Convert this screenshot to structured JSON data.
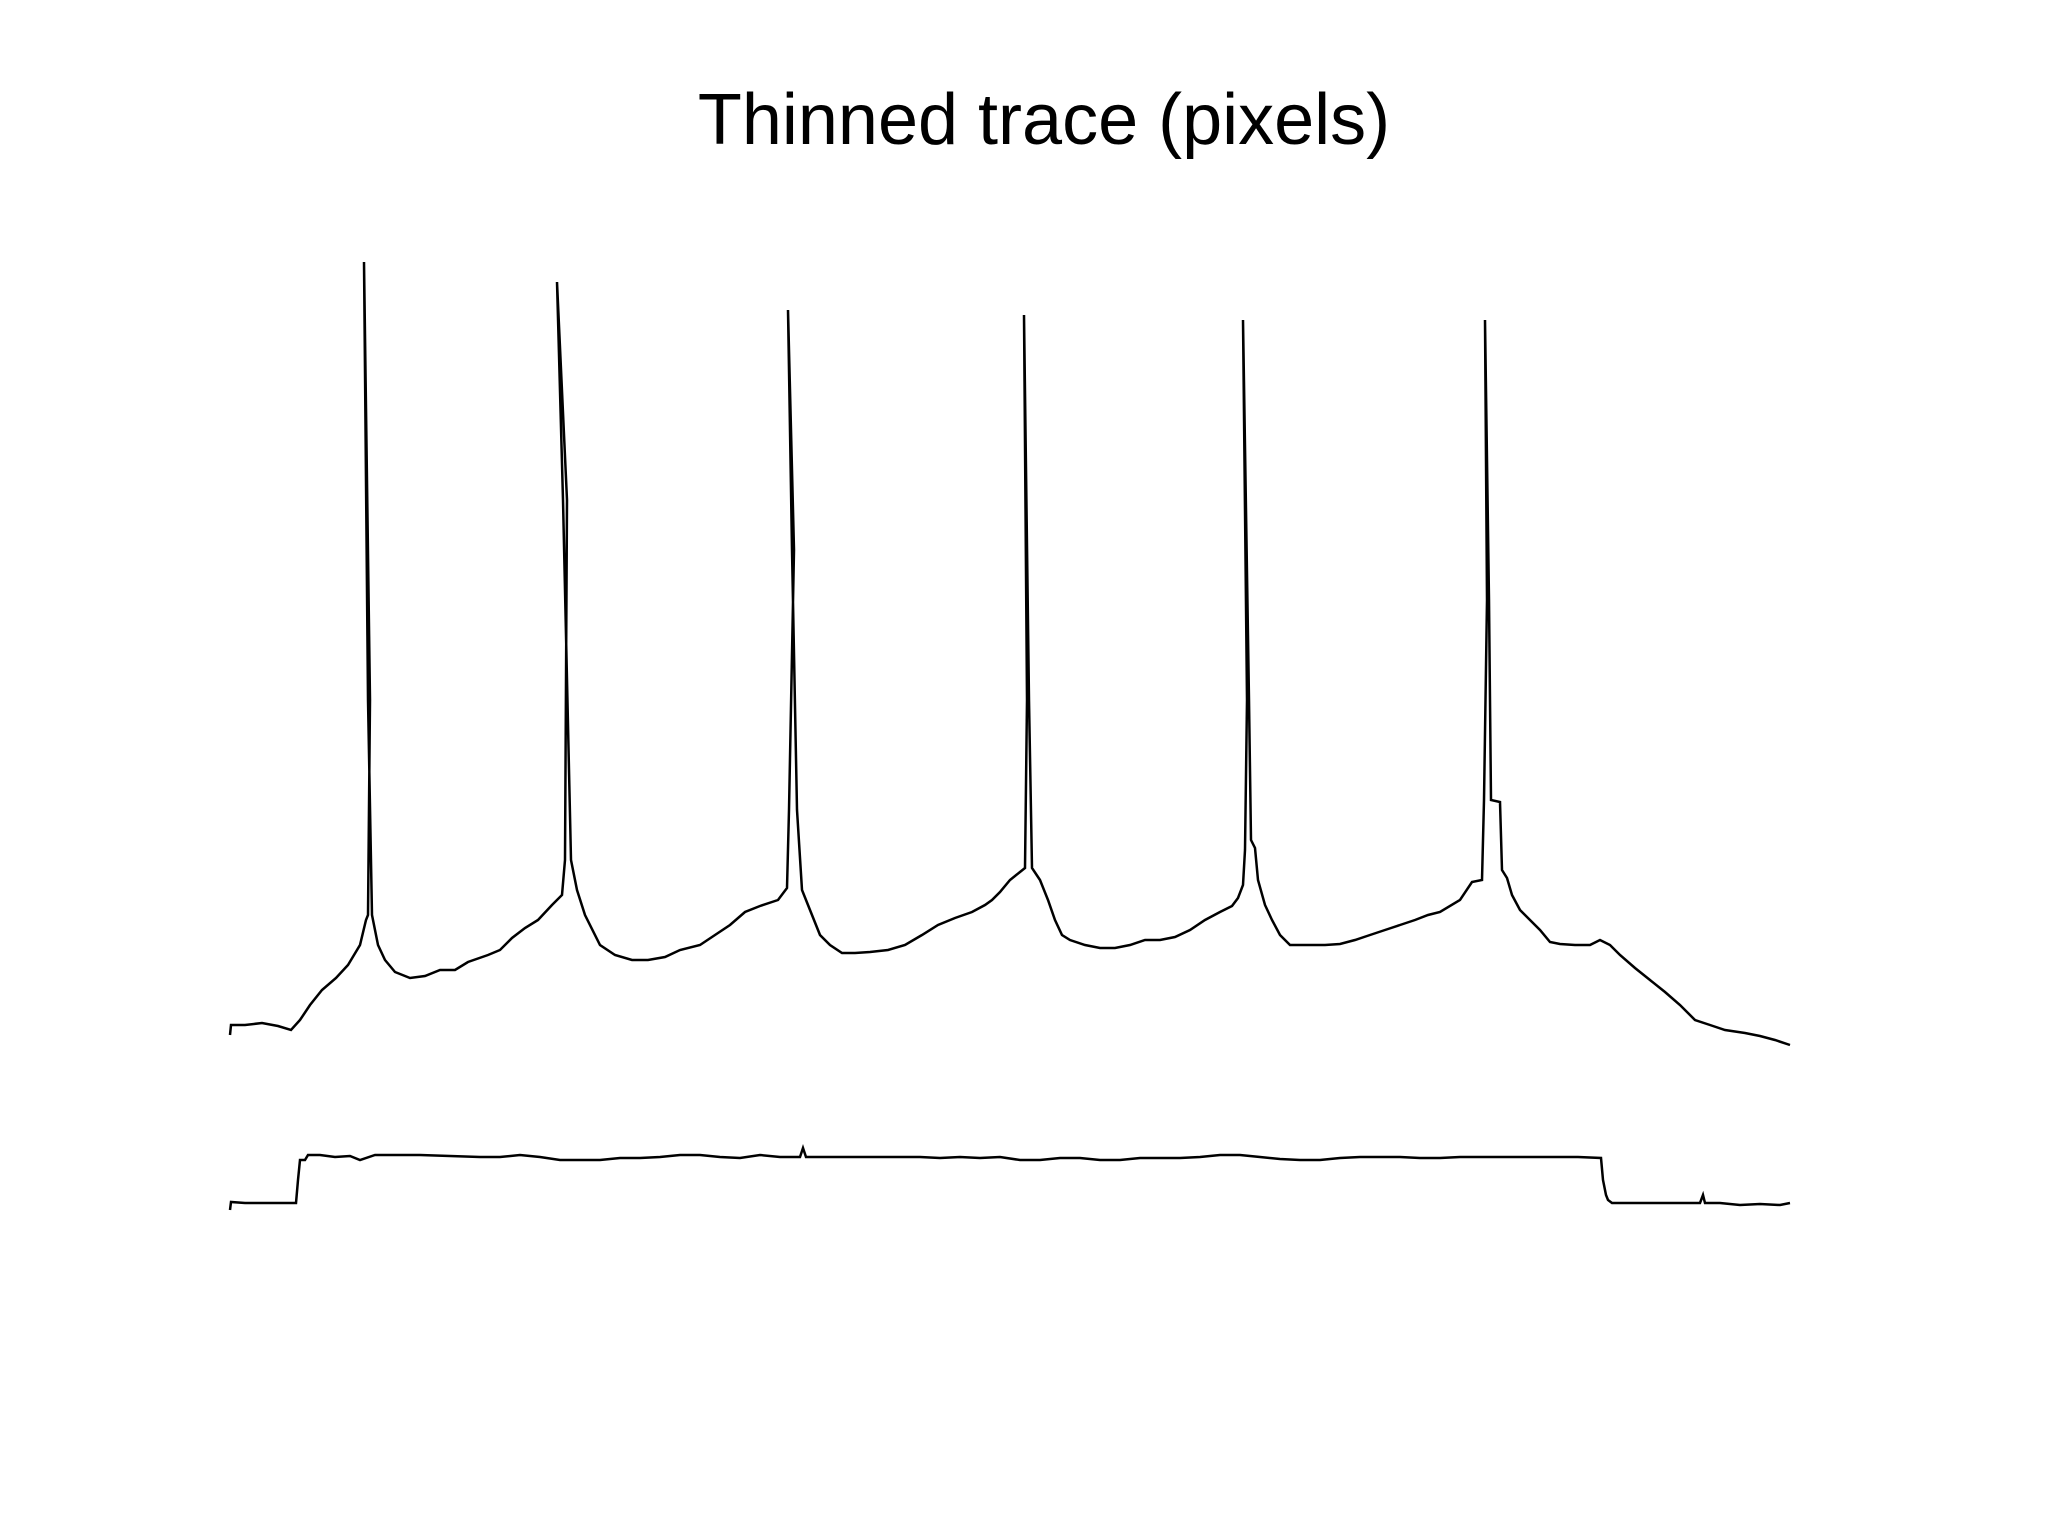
{
  "title": "Thinned trace (pixels)",
  "chart_data": {
    "type": "line",
    "title": "Thinned trace (pixels)",
    "xlabel": "",
    "ylabel": "",
    "grid": false,
    "legend": "none",
    "colors": {
      "trace": "#000000",
      "background": "#ffffff"
    },
    "x_range": [
      230,
      1800
    ],
    "y_range": [
      240,
      1220
    ],
    "series": [
      {
        "name": "",
        "points": [
          [
            230,
            1035
          ],
          [
            231,
            1025
          ],
          [
            245,
            1025
          ],
          [
            262,
            1023
          ],
          [
            278,
            1026
          ],
          [
            291,
            1030
          ],
          [
            300,
            1020
          ],
          [
            310,
            1005
          ],
          [
            322,
            990
          ],
          [
            336,
            978
          ],
          [
            348,
            965
          ],
          [
            360,
            945
          ],
          [
            366,
            920
          ],
          [
            368,
            915
          ],
          [
            370,
            700
          ],
          [
            364,
            262
          ],
          [
            368,
            700
          ],
          [
            372,
            915
          ],
          [
            378,
            945
          ],
          [
            385,
            960
          ],
          [
            395,
            972
          ],
          [
            410,
            978
          ],
          [
            425,
            976
          ],
          [
            440,
            970
          ],
          [
            455,
            970
          ],
          [
            468,
            962
          ],
          [
            488,
            955
          ],
          [
            500,
            950
          ],
          [
            512,
            938
          ],
          [
            525,
            928
          ],
          [
            538,
            920
          ],
          [
            552,
            905
          ],
          [
            562,
            895
          ],
          [
            565,
            860
          ],
          [
            567,
            500
          ],
          [
            557,
            282
          ],
          [
            563,
            500
          ],
          [
            571,
            860
          ],
          [
            577,
            890
          ],
          [
            585,
            915
          ],
          [
            600,
            945
          ],
          [
            615,
            955
          ],
          [
            632,
            960
          ],
          [
            648,
            960
          ],
          [
            665,
            957
          ],
          [
            680,
            950
          ],
          [
            700,
            945
          ],
          [
            715,
            935
          ],
          [
            730,
            925
          ],
          [
            745,
            912
          ],
          [
            760,
            906
          ],
          [
            778,
            900
          ],
          [
            787,
            888
          ],
          [
            789,
            810
          ],
          [
            794,
            550
          ],
          [
            788,
            310
          ],
          [
            792,
            550
          ],
          [
            797,
            810
          ],
          [
            802,
            890
          ],
          [
            808,
            905
          ],
          [
            820,
            935
          ],
          [
            830,
            945
          ],
          [
            842,
            953
          ],
          [
            855,
            953
          ],
          [
            870,
            952
          ],
          [
            888,
            950
          ],
          [
            905,
            945
          ],
          [
            922,
            935
          ],
          [
            938,
            925
          ],
          [
            955,
            918
          ],
          [
            972,
            912
          ],
          [
            985,
            905
          ],
          [
            992,
            900
          ],
          [
            1000,
            892
          ],
          [
            1010,
            880
          ],
          [
            1020,
            872
          ],
          [
            1025,
            868
          ],
          [
            1027,
            700
          ],
          [
            1024,
            315
          ],
          [
            1029,
            700
          ],
          [
            1032,
            868
          ],
          [
            1040,
            880
          ],
          [
            1048,
            900
          ],
          [
            1055,
            920
          ],
          [
            1062,
            935
          ],
          [
            1070,
            940
          ],
          [
            1085,
            945
          ],
          [
            1100,
            948
          ],
          [
            1115,
            948
          ],
          [
            1130,
            945
          ],
          [
            1145,
            940
          ],
          [
            1160,
            940
          ],
          [
            1175,
            937
          ],
          [
            1190,
            930
          ],
          [
            1205,
            920
          ],
          [
            1220,
            912
          ],
          [
            1232,
            906
          ],
          [
            1238,
            898
          ],
          [
            1243,
            885
          ],
          [
            1245,
            850
          ],
          [
            1247,
            700
          ],
          [
            1243,
            320
          ],
          [
            1249,
            700
          ],
          [
            1251,
            840
          ],
          [
            1255,
            848
          ],
          [
            1258,
            880
          ],
          [
            1265,
            905
          ],
          [
            1272,
            920
          ],
          [
            1280,
            935
          ],
          [
            1290,
            945
          ],
          [
            1298,
            945
          ],
          [
            1310,
            945
          ],
          [
            1325,
            945
          ],
          [
            1340,
            944
          ],
          [
            1355,
            940
          ],
          [
            1370,
            935
          ],
          [
            1385,
            930
          ],
          [
            1400,
            925
          ],
          [
            1415,
            920
          ],
          [
            1428,
            915
          ],
          [
            1440,
            912
          ],
          [
            1460,
            900
          ],
          [
            1472,
            882
          ],
          [
            1482,
            880
          ],
          [
            1484,
            800
          ],
          [
            1487,
            600
          ],
          [
            1485,
            320
          ],
          [
            1489,
            600
          ],
          [
            1491,
            800
          ],
          [
            1500,
            802
          ],
          [
            1502,
            870
          ],
          [
            1507,
            878
          ],
          [
            1512,
            895
          ],
          [
            1520,
            910
          ],
          [
            1530,
            920
          ],
          [
            1540,
            930
          ],
          [
            1550,
            942
          ],
          [
            1560,
            944
          ],
          [
            1575,
            945
          ],
          [
            1590,
            945
          ],
          [
            1600,
            940
          ],
          [
            1610,
            945
          ],
          [
            1620,
            955
          ],
          [
            1635,
            968
          ],
          [
            1650,
            980
          ],
          [
            1665,
            992
          ],
          [
            1680,
            1005
          ],
          [
            1695,
            1020
          ],
          [
            1710,
            1025
          ],
          [
            1725,
            1030
          ],
          [
            1745,
            1033
          ],
          [
            1760,
            1036
          ],
          [
            1775,
            1040
          ],
          [
            1790,
            1045
          ]
        ]
      },
      {
        "name": "",
        "points": [
          [
            230,
            1210
          ],
          [
            231,
            1202
          ],
          [
            245,
            1203
          ],
          [
            262,
            1203
          ],
          [
            278,
            1203
          ],
          [
            296,
            1203
          ],
          [
            298,
            1180
          ],
          [
            300,
            1160
          ],
          [
            305,
            1160
          ],
          [
            308,
            1155
          ],
          [
            320,
            1155
          ],
          [
            335,
            1157
          ],
          [
            350,
            1156
          ],
          [
            360,
            1160
          ],
          [
            375,
            1155
          ],
          [
            390,
            1155
          ],
          [
            420,
            1155
          ],
          [
            450,
            1156
          ],
          [
            480,
            1157
          ],
          [
            500,
            1157
          ],
          [
            520,
            1155
          ],
          [
            540,
            1157
          ],
          [
            560,
            1160
          ],
          [
            580,
            1160
          ],
          [
            600,
            1160
          ],
          [
            620,
            1158
          ],
          [
            640,
            1158
          ],
          [
            660,
            1157
          ],
          [
            680,
            1155
          ],
          [
            700,
            1155
          ],
          [
            720,
            1157
          ],
          [
            740,
            1158
          ],
          [
            760,
            1155
          ],
          [
            780,
            1157
          ],
          [
            800,
            1157
          ],
          [
            803,
            1148
          ],
          [
            806,
            1157
          ],
          [
            820,
            1157
          ],
          [
            840,
            1157
          ],
          [
            860,
            1157
          ],
          [
            880,
            1157
          ],
          [
            900,
            1157
          ],
          [
            920,
            1157
          ],
          [
            940,
            1158
          ],
          [
            960,
            1157
          ],
          [
            980,
            1158
          ],
          [
            1000,
            1157
          ],
          [
            1020,
            1160
          ],
          [
            1040,
            1160
          ],
          [
            1060,
            1158
          ],
          [
            1080,
            1158
          ],
          [
            1100,
            1160
          ],
          [
            1120,
            1160
          ],
          [
            1140,
            1158
          ],
          [
            1160,
            1158
          ],
          [
            1180,
            1158
          ],
          [
            1200,
            1157
          ],
          [
            1220,
            1155
          ],
          [
            1240,
            1155
          ],
          [
            1260,
            1157
          ],
          [
            1280,
            1159
          ],
          [
            1300,
            1160
          ],
          [
            1320,
            1160
          ],
          [
            1340,
            1158
          ],
          [
            1360,
            1157
          ],
          [
            1380,
            1157
          ],
          [
            1400,
            1157
          ],
          [
            1420,
            1158
          ],
          [
            1440,
            1158
          ],
          [
            1460,
            1157
          ],
          [
            1480,
            1157
          ],
          [
            1500,
            1157
          ],
          [
            1520,
            1157
          ],
          [
            1540,
            1157
          ],
          [
            1560,
            1157
          ],
          [
            1578,
            1157
          ],
          [
            1601,
            1158
          ],
          [
            1603,
            1180
          ],
          [
            1606,
            1195
          ],
          [
            1608,
            1200
          ],
          [
            1612,
            1203
          ],
          [
            1620,
            1203
          ],
          [
            1640,
            1203
          ],
          [
            1660,
            1203
          ],
          [
            1680,
            1203
          ],
          [
            1700,
            1203
          ],
          [
            1703,
            1195
          ],
          [
            1705,
            1203
          ],
          [
            1720,
            1203
          ],
          [
            1740,
            1205
          ],
          [
            1760,
            1204
          ],
          [
            1780,
            1205
          ],
          [
            1790,
            1203
          ]
        ]
      }
    ]
  }
}
